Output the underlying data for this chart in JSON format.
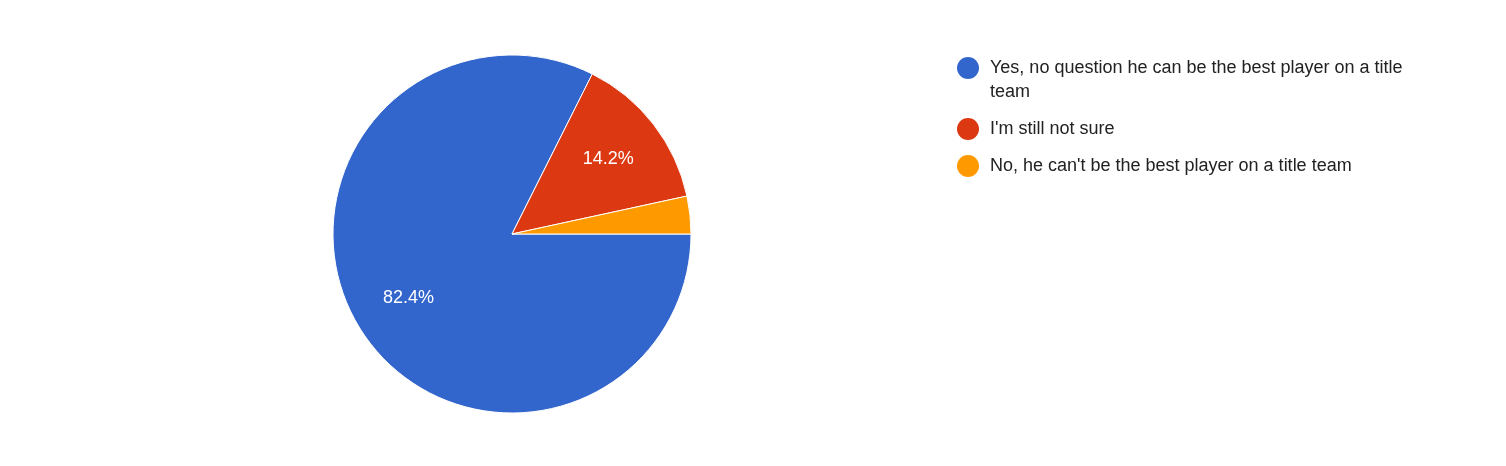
{
  "chart_data": {
    "type": "pie",
    "categories": [
      "Yes, no question he can be the best player on a title team",
      "I'm still not sure",
      "No, he can't be the best player on a title team"
    ],
    "values": [
      82.4,
      14.2,
      3.4
    ],
    "colors": [
      "#3366cc",
      "#dc3912",
      "#ff9900"
    ],
    "value_labels": [
      "82.4%",
      "14.2%",
      null
    ],
    "legend": "right"
  }
}
